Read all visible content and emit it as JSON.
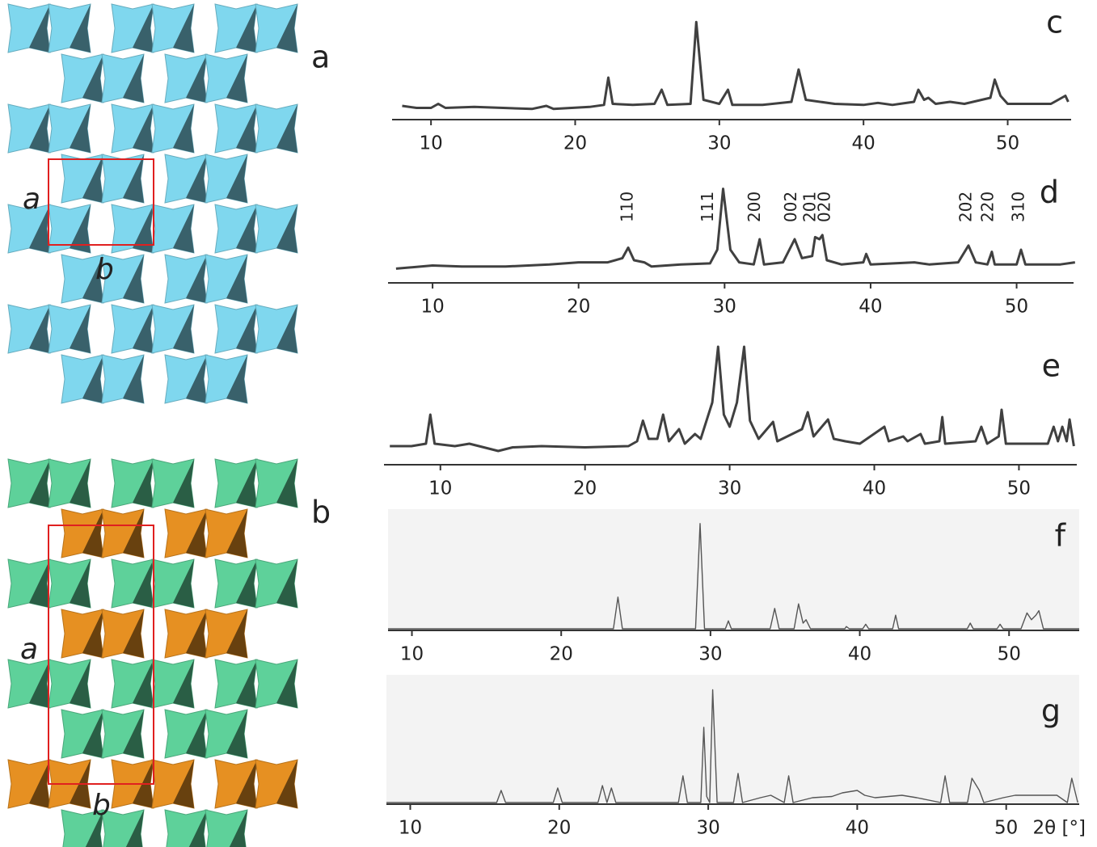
{
  "structures": [
    {
      "label": "a",
      "axes": [
        "a",
        "b"
      ],
      "colors": [
        "#7fd7ee",
        "#2b6f8a"
      ]
    },
    {
      "label": "b",
      "axes": [
        "a",
        "b"
      ],
      "colors": [
        "#5ed19a",
        "#e69022"
      ]
    }
  ],
  "chart_data": [
    {
      "type": "line",
      "label": "c",
      "color": "#404040",
      "xlim": [
        7.3,
        54.4
      ],
      "ylim": [
        0,
        100
      ],
      "xticks": [
        10,
        20,
        30,
        40,
        50
      ],
      "x": [
        8,
        9,
        10,
        10.5,
        11,
        13,
        15,
        17,
        18,
        18.5,
        21,
        22,
        22.3,
        22.6,
        24,
        25.5,
        26,
        26.4,
        28,
        28.4,
        28.9,
        30,
        30.6,
        30.9,
        33,
        35,
        35.5,
        36,
        38,
        40,
        41,
        42,
        43.5,
        43.8,
        44.2,
        44.5,
        45,
        46,
        47,
        48.8,
        49.1,
        49.5,
        50,
        53,
        54,
        54.2
      ],
      "values": [
        12,
        10,
        10,
        14,
        10,
        11,
        10,
        9,
        12,
        9,
        11,
        13,
        40,
        14,
        13,
        14,
        28,
        13,
        14,
        95,
        18,
        14,
        28,
        13,
        13,
        16,
        48,
        18,
        14,
        13,
        15,
        13,
        16,
        28,
        18,
        20,
        14,
        16,
        14,
        20,
        38,
        22,
        14,
        14,
        22,
        16
      ]
    },
    {
      "type": "line",
      "label": "d",
      "color": "#404040",
      "xlim": [
        6.95,
        53.9
      ],
      "ylim": [
        0,
        100
      ],
      "xticks": [
        10,
        20,
        30,
        40,
        50
      ],
      "x": [
        7.5,
        10,
        12,
        15,
        18,
        20,
        22,
        23,
        23.4,
        23.8,
        24.5,
        25,
        27,
        29,
        29.5,
        29.9,
        30.4,
        31,
        32,
        32.4,
        32.7,
        34,
        34.8,
        35.3,
        36,
        36.2,
        36.5,
        36.7,
        37,
        38,
        39.5,
        39.7,
        40,
        43,
        44,
        46,
        46.7,
        47.2,
        48,
        48.3,
        48.5,
        50,
        50.3,
        50.6,
        53,
        54
      ],
      "values": [
        12,
        15,
        14,
        14,
        16,
        18,
        18,
        22,
        32,
        20,
        18,
        14,
        16,
        17,
        30,
        88,
        30,
        18,
        16,
        40,
        16,
        18,
        40,
        22,
        24,
        42,
        40,
        44,
        20,
        16,
        18,
        26,
        16,
        18,
        16,
        18,
        34,
        18,
        16,
        28,
        16,
        16,
        30,
        16,
        16,
        18
      ],
      "annotations": [
        {
          "text": "110",
          "x": 23.4
        },
        {
          "text": "111",
          "x": 28.9
        },
        {
          "text": "200",
          "x": 32.1
        },
        {
          "text": "002",
          "x": 34.6
        },
        {
          "text": "201",
          "x": 35.9
        },
        {
          "text": "020",
          "x": 36.9
        },
        {
          "text": "202",
          "x": 46.6
        },
        {
          "text": "220",
          "x": 48.1
        },
        {
          "text": "310",
          "x": 50.2
        }
      ]
    },
    {
      "type": "line",
      "label": "e",
      "color": "#404040",
      "xlim": [
        6.1,
        54.0
      ],
      "ylim": [
        0,
        100
      ],
      "xticks": [
        10,
        20,
        30,
        40,
        50
      ],
      "x": [
        6.5,
        8,
        9,
        9.3,
        9.6,
        11,
        12,
        13,
        14,
        15,
        17,
        20,
        23,
        23.6,
        24,
        24.4,
        25,
        25.4,
        25.8,
        26.5,
        26.9,
        27.6,
        28,
        28.8,
        29.2,
        29.6,
        30,
        30.5,
        31,
        31.4,
        32,
        33,
        33.3,
        35,
        35.4,
        35.8,
        36.8,
        37.2,
        38,
        39,
        40.7,
        41,
        42,
        42.3,
        43.2,
        43.5,
        44.5,
        44.7,
        44.9,
        47,
        47.4,
        47.8,
        48.6,
        48.8,
        49.1,
        52,
        52.4,
        52.7,
        53,
        53.3,
        53.5,
        53.8
      ],
      "values": [
        14,
        14,
        16,
        40,
        16,
        14,
        16,
        13,
        10,
        13,
        14,
        13,
        14,
        18,
        35,
        20,
        20,
        40,
        18,
        28,
        16,
        24,
        20,
        50,
        96,
        40,
        30,
        50,
        96,
        35,
        20,
        34,
        18,
        28,
        42,
        22,
        36,
        20,
        18,
        16,
        30,
        18,
        22,
        18,
        24,
        16,
        18,
        38,
        16,
        18,
        30,
        16,
        22,
        44,
        16,
        16,
        30,
        18,
        30,
        18,
        36,
        14
      ]
    },
    {
      "type": "line",
      "label": "f",
      "color": "#555555",
      "background": "#f3f3f3",
      "xlim": [
        8.4,
        54.7
      ],
      "ylim": [
        0,
        100
      ],
      "xticks": [
        10,
        20,
        30,
        40,
        50
      ],
      "x": [
        8.4,
        23.5,
        23.8,
        24.1,
        29,
        29.3,
        29.6,
        31,
        31.2,
        31.4,
        34,
        34.3,
        34.6,
        35.6,
        35.9,
        36.2,
        36.4,
        36.7,
        39,
        39.1,
        39.3,
        40.2,
        40.4,
        40.6,
        42.2,
        42.4,
        42.6,
        47.2,
        47.4,
        47.6,
        49.2,
        49.4,
        49.6,
        50.8,
        51.2,
        51.5,
        51.8,
        52,
        52.3,
        54.7
      ],
      "values": [
        0,
        0,
        28,
        0,
        0,
        93,
        0,
        0,
        7,
        0,
        0,
        18,
        0,
        0,
        22,
        5,
        8,
        0,
        0,
        2,
        0,
        0,
        4,
        0,
        0,
        12,
        0,
        0,
        5,
        0,
        0,
        4,
        0,
        0,
        14,
        8,
        12,
        16,
        0,
        0
      ]
    },
    {
      "type": "line",
      "label": "g",
      "color": "#555555",
      "background": "#f3f3f3",
      "xlim": [
        8.4,
        54.9
      ],
      "ylim": [
        0,
        100
      ],
      "xticks": [
        10,
        20,
        30,
        40,
        50
      ],
      "xlabel": "2θ [°]",
      "x": [
        8.4,
        15.8,
        16.1,
        16.4,
        19.6,
        19.9,
        20.2,
        22.6,
        22.9,
        23.2,
        23.5,
        23.8,
        28,
        28.3,
        28.6,
        29.5,
        29.7,
        29.9,
        30.1,
        30.3,
        30.6,
        31.7,
        32,
        32.3,
        33.5,
        34.2,
        35.1,
        35.4,
        35.7,
        37,
        38.3,
        39,
        40,
        40.5,
        41.2,
        43,
        44,
        45.6,
        45.9,
        46.2,
        47.4,
        47.7,
        48.2,
        48.5,
        49.8,
        50.6,
        53.4,
        54.1,
        54.4,
        54.8
      ],
      "values": [
        0,
        0,
        10,
        0,
        0,
        12,
        0,
        0,
        14,
        0,
        12,
        0,
        0,
        22,
        0,
        0,
        62,
        5,
        0,
        93,
        0,
        0,
        24,
        0,
        4,
        6,
        0,
        22,
        0,
        4,
        5,
        8,
        10,
        6,
        4,
        6,
        4,
        0,
        22,
        0,
        0,
        20,
        10,
        0,
        4,
        6,
        6,
        0,
        20,
        0
      ]
    }
  ]
}
